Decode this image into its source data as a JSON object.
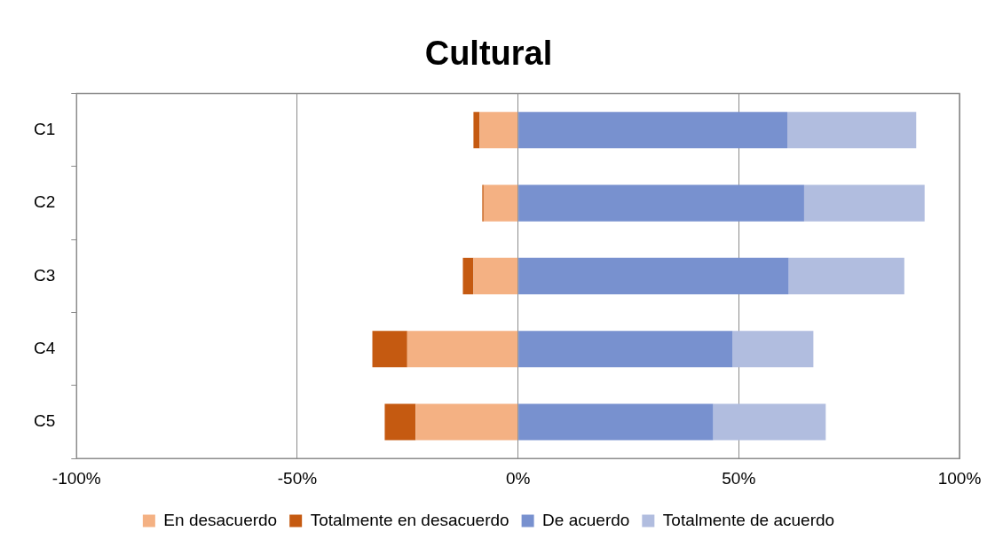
{
  "chart_data": {
    "type": "bar",
    "title": "Cultural",
    "orientation": "horizontal",
    "stacked": true,
    "categories": [
      "C1",
      "C2",
      "C3",
      "C4",
      "C5"
    ],
    "series": [
      {
        "name": "En desacuerdo",
        "color": "#f4b183",
        "values": [
          -8.7,
          -7.8,
          -10.1,
          -25.1,
          -23.2
        ]
      },
      {
        "name": "Totalmente en desacuerdo",
        "color": "#c55a11",
        "values": [
          -1.4,
          -0.3,
          -2.4,
          -7.9,
          -7.0
        ]
      },
      {
        "name": "De acuerdo",
        "color": "#7891cf",
        "values": [
          61.0,
          64.8,
          61.3,
          48.6,
          44.2
        ]
      },
      {
        "name": "Totalmente de acuerdo",
        "color": "#b1bddf",
        "values": [
          29.2,
          27.3,
          26.2,
          18.3,
          25.5
        ]
      }
    ],
    "xlim": [
      -100,
      100
    ],
    "xticks": [
      {
        "value": -100,
        "label": "-100%"
      },
      {
        "value": -50,
        "label": "-50%"
      },
      {
        "value": 0,
        "label": "0%"
      },
      {
        "value": 50,
        "label": "50%"
      },
      {
        "value": 100,
        "label": "100%"
      }
    ],
    "grid": "x",
    "legend": "bottom"
  }
}
